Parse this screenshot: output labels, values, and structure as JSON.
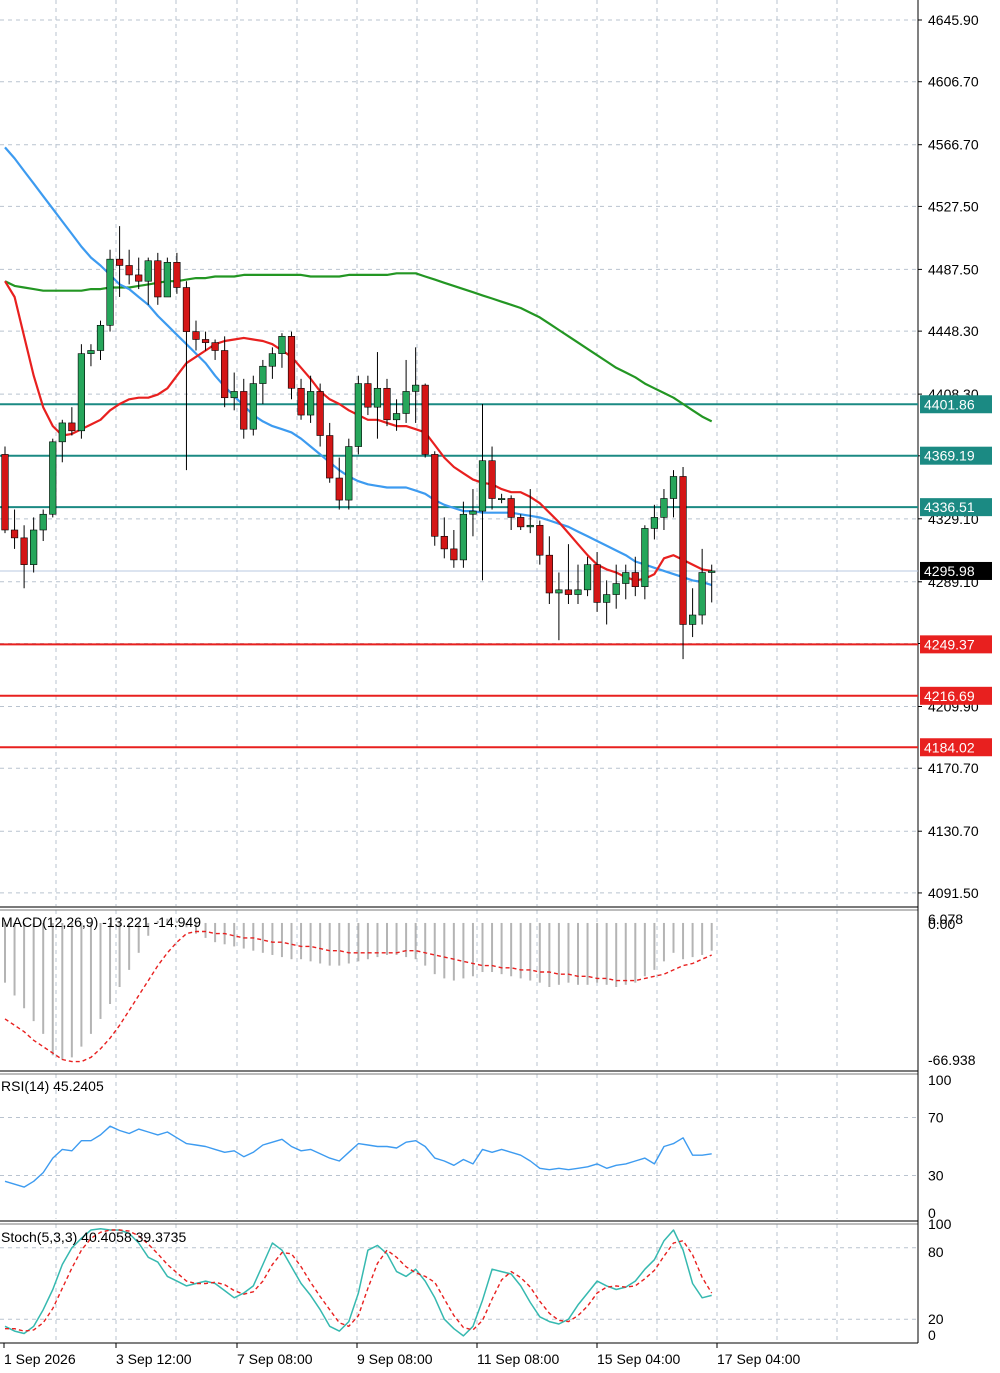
{
  "colors": {
    "bull": "#26a65b",
    "bear": "#d41616",
    "ma_fast": "#e8201f",
    "ma_mid": "#3d9bf0",
    "ma_slow": "#239623",
    "resistance": "#1b8a83",
    "support": "#e8201f",
    "price_tag": "#000000",
    "macd_hist": "#b4b4b4",
    "macd_signal": "#e8201f",
    "osc_line": "#3d9bf0",
    "stoch_main": "#36b9b0",
    "stoch_signal": "#e8201f",
    "grid": "#b9c3cf",
    "axis": "#000000"
  },
  "chart_data": [
    {
      "type": "candlestick",
      "price_ticks": [
        "4645.90",
        "4606.70",
        "4566.70",
        "4527.50",
        "4487.50",
        "4448.30",
        "4408.30",
        "4369.10",
        "4329.10",
        "4289.10",
        "4249.90",
        "4209.90",
        "4170.70",
        "4130.70",
        "4091.50"
      ],
      "tick_values": [
        4645.9,
        4606.7,
        4566.7,
        4527.5,
        4487.5,
        4448.3,
        4408.3,
        4369.1,
        4329.1,
        4289.1,
        4249.9,
        4209.9,
        4170.7,
        4130.7,
        4091.5
      ],
      "ylim": [
        4083.2,
        4658.6
      ],
      "time_labels": [
        "1 Sep 2026",
        "3 Sep 12:00",
        "7 Sep 08:00",
        "9 Sep 08:00",
        "11 Sep 08:00",
        "15 Sep 04:00",
        "17 Sep 04:00"
      ],
      "current_price": "4295.98",
      "current_value": 4295.98,
      "levels": [
        {
          "label": "4401.86",
          "value": 4401.86,
          "kind": "resistance"
        },
        {
          "label": "4369.19",
          "value": 4369.19,
          "kind": "resistance"
        },
        {
          "label": "4336.51",
          "value": 4336.51,
          "kind": "resistance"
        },
        {
          "label": "4249.37",
          "value": 4249.37,
          "kind": "support"
        },
        {
          "label": "4216.69",
          "value": 4216.69,
          "kind": "support"
        },
        {
          "label": "4184.02",
          "value": 4184.02,
          "kind": "support"
        }
      ],
      "candles": [
        [
          4370,
          4375,
          4320,
          4322
        ],
        [
          4322,
          4335,
          4310,
          4317
        ],
        [
          4317,
          4325,
          4285,
          4300
        ],
        [
          4300,
          4330,
          4295,
          4322
        ],
        [
          4322,
          4335,
          4315,
          4332
        ],
        [
          4332,
          4380,
          4330,
          4378
        ],
        [
          4378,
          4392,
          4365,
          4390
        ],
        [
          4390,
          4400,
          4382,
          4385
        ],
        [
          4385,
          4440,
          4380,
          4434
        ],
        [
          4434,
          4440,
          4426,
          4436
        ],
        [
          4436,
          4455,
          4430,
          4452
        ],
        [
          4452,
          4500,
          4448,
          4494
        ],
        [
          4494,
          4515,
          4470,
          4490
        ],
        [
          4490,
          4500,
          4478,
          4484
        ],
        [
          4484,
          4495,
          4475,
          4480
        ],
        [
          4480,
          4495,
          4465,
          4493
        ],
        [
          4493,
          4498,
          4465,
          4470
        ],
        [
          4470,
          4495,
          4470,
          4492
        ],
        [
          4492,
          4498,
          4472,
          4476
        ],
        [
          4476,
          4480,
          4360,
          4448
        ],
        [
          4448,
          4455,
          4436,
          4443
        ],
        [
          4443,
          4448,
          4436,
          4441
        ],
        [
          4441,
          4443,
          4430,
          4436
        ],
        [
          4436,
          4445,
          4400,
          4406
        ],
        [
          4406,
          4422,
          4398,
          4410
        ],
        [
          4410,
          4418,
          4380,
          4386
        ],
        [
          4386,
          4420,
          4382,
          4415
        ],
        [
          4415,
          4430,
          4402,
          4426
        ],
        [
          4426,
          4438,
          4418,
          4434
        ],
        [
          4434,
          4447,
          4425,
          4445
        ],
        [
          4445,
          4448,
          4405,
          4412
        ],
        [
          4412,
          4418,
          4392,
          4395
        ],
        [
          4395,
          4420,
          4390,
          4410
        ],
        [
          4410,
          4415,
          4375,
          4382
        ],
        [
          4382,
          4390,
          4352,
          4355
        ],
        [
          4355,
          4368,
          4335,
          4341
        ],
        [
          4341,
          4380,
          4335,
          4375
        ],
        [
          4375,
          4420,
          4370,
          4415
        ],
        [
          4415,
          4420,
          4395,
          4400
        ],
        [
          4400,
          4435,
          4380,
          4412
        ],
        [
          4412,
          4418,
          4388,
          4392
        ],
        [
          4392,
          4405,
          4385,
          4396
        ],
        [
          4396,
          4430,
          4390,
          4410
        ],
        [
          4410,
          4438,
          4390,
          4414
        ],
        [
          4414,
          4415,
          4368,
          4370
        ],
        [
          4370,
          4372,
          4312,
          4318
        ],
        [
          4318,
          4330,
          4304,
          4310
        ],
        [
          4310,
          4322,
          4298,
          4303
        ],
        [
          4303,
          4340,
          4298,
          4332
        ],
        [
          4332,
          4348,
          4318,
          4334
        ],
        [
          4334,
          4402,
          4290,
          4366
        ],
        [
          4366,
          4375,
          4335,
          4342
        ],
        [
          4342,
          4345,
          4339,
          4342
        ],
        [
          4342,
          4344,
          4322,
          4330
        ],
        [
          4330,
          4332,
          4322,
          4324
        ],
        [
          4324,
          4348,
          4320,
          4325
        ],
        [
          4325,
          4328,
          4300,
          4306
        ],
        [
          4306,
          4318,
          4275,
          4282
        ],
        [
          4282,
          4295,
          4252,
          4284
        ],
        [
          4284,
          4313,
          4275,
          4281
        ],
        [
          4281,
          4300,
          4275,
          4284
        ],
        [
          4284,
          4305,
          4280,
          4300
        ],
        [
          4300,
          4308,
          4270,
          4276
        ],
        [
          4276,
          4290,
          4262,
          4281
        ],
        [
          4281,
          4300,
          4272,
          4288
        ],
        [
          4288,
          4300,
          4278,
          4295
        ],
        [
          4295,
          4305,
          4280,
          4286
        ],
        [
          4286,
          4325,
          4278,
          4323
        ],
        [
          4323,
          4338,
          4316,
          4330
        ],
        [
          4330,
          4348,
          4322,
          4342
        ],
        [
          4342,
          4360,
          4330,
          4356
        ],
        [
          4356,
          4362,
          4240,
          4262
        ],
        [
          4262,
          4285,
          4254,
          4268
        ],
        [
          4268,
          4310,
          4262,
          4295
        ],
        [
          4295,
          4300,
          4276,
          4296
        ]
      ],
      "ma_fast": [
        4480,
        4470,
        4445,
        4420,
        4400,
        4388,
        4382,
        4383,
        4386,
        4389,
        4392,
        4398,
        4402,
        4405,
        4406,
        4406,
        4408,
        4412,
        4420,
        4428,
        4432,
        4436,
        4440,
        4442,
        4443,
        4444,
        4443,
        4442,
        4440,
        4436,
        4432,
        4425,
        4418,
        4410,
        4405,
        4402,
        4398,
        4395,
        4392,
        4392,
        4390,
        4388,
        4388,
        4386,
        4384,
        4376,
        4368,
        4362,
        4358,
        4354,
        4352,
        4351,
        4348,
        4346,
        4346,
        4343,
        4339,
        4333,
        4327,
        4320,
        4313,
        4306,
        4300,
        4297,
        4295,
        4292,
        4290,
        4291,
        4294,
        4304,
        4306,
        4303,
        4300,
        4297,
        4296
      ],
      "ma_mid": [
        4565,
        4558,
        4550,
        4542,
        4534,
        4526,
        4518,
        4510,
        4502,
        4495,
        4490,
        4484,
        4478,
        4475,
        4470,
        4465,
        4458,
        4452,
        4446,
        4440,
        4434,
        4428,
        4420,
        4413,
        4407,
        4401,
        4395,
        4391,
        4388,
        4386,
        4384,
        4380,
        4375,
        4370,
        4365,
        4360,
        4356,
        4353,
        4351,
        4350,
        4349,
        4349,
        4349,
        4347,
        4345,
        4341,
        4338,
        4336,
        4334,
        4334,
        4333,
        4333,
        4333,
        4333,
        4332,
        4331,
        4330,
        4328,
        4326,
        4324,
        4321,
        4318,
        4315,
        4312,
        4309,
        4306,
        4302,
        4300,
        4298,
        4296,
        4294,
        4292,
        4290,
        4289,
        4287
      ],
      "ma_slow": [
        4480,
        4477,
        4476,
        4475,
        4474,
        4474,
        4474,
        4474,
        4474,
        4475,
        4475,
        4476,
        4476,
        4476,
        4477,
        4478,
        4479,
        4480,
        4480,
        4481,
        4482,
        4482,
        4483,
        4483,
        4483,
        4484,
        4484,
        4484,
        4484,
        4484,
        4484,
        4484,
        4483,
        4483,
        4483,
        4483,
        4484,
        4484,
        4484,
        4484,
        4484,
        4485,
        4485,
        4485,
        4483,
        4481,
        4479,
        4477,
        4475,
        4473,
        4471,
        4469,
        4467,
        4465,
        4463,
        4460,
        4457,
        4453,
        4449,
        4445,
        4441,
        4437,
        4433,
        4429,
        4425,
        4422,
        4419,
        4415,
        4412,
        4409,
        4406,
        4402,
        4398,
        4394,
        4391
      ]
    },
    {
      "type": "bar",
      "name": "MACD(12,26,9)",
      "title_values": "MACD(12,26,9) -13.221 -14.949",
      "top_label": "6.078",
      "zero_label": "0.00",
      "bottom_label": "-66.938",
      "ylim": [
        -68,
        6.078
      ],
      "histogram": [
        -28,
        -34,
        -40,
        -46,
        -52,
        -62,
        -64,
        -63,
        -58,
        -52,
        -45,
        -38,
        -30,
        -22,
        -14,
        -6,
        1,
        2,
        1,
        -2,
        -5,
        -7,
        -9,
        -10,
        -11,
        -12,
        -13,
        -14,
        -15,
        -16,
        -17,
        -17,
        -18,
        -19,
        -20,
        -20,
        -19,
        -18,
        -17,
        -16,
        -15,
        -15,
        -16,
        -17,
        -20,
        -24,
        -26,
        -27,
        -26,
        -25,
        -23,
        -23,
        -24,
        -25,
        -26,
        -27,
        -28,
        -30,
        -29,
        -28,
        -29,
        -29,
        -28,
        -29,
        -30,
        -29,
        -28,
        -25,
        -22,
        -18,
        -14,
        -17,
        -16,
        -15,
        -13
      ],
      "signal": [
        -45,
        -48,
        -51,
        -55,
        -58,
        -61,
        -64,
        -65,
        -65,
        -63,
        -59,
        -54,
        -48,
        -41,
        -34,
        -27,
        -20,
        -14,
        -9,
        -5,
        -4,
        -4,
        -5,
        -5,
        -6,
        -7,
        -7,
        -8,
        -9,
        -9,
        -10,
        -11,
        -11,
        -12,
        -13,
        -13,
        -14,
        -14,
        -14,
        -14,
        -14,
        -14,
        -13,
        -13,
        -14,
        -15,
        -16,
        -17,
        -18,
        -19,
        -20,
        -20,
        -21,
        -21,
        -22,
        -22,
        -23,
        -23,
        -24,
        -24,
        -25,
        -25,
        -26,
        -26,
        -27,
        -27,
        -27,
        -26,
        -25,
        -24,
        -22,
        -20,
        -19,
        -17,
        -15
      ]
    },
    {
      "type": "line",
      "name": "RSI(14)",
      "title_values": "RSI(14) 45.2405",
      "yticks": [
        "100",
        "70",
        "30",
        "0"
      ],
      "ytick_values": [
        100,
        70,
        30,
        0
      ],
      "ylim": [
        0,
        100
      ],
      "values": [
        26,
        24,
        22,
        26,
        32,
        42,
        48,
        47,
        54,
        54,
        58,
        64,
        61,
        59,
        62,
        60,
        58,
        60,
        56,
        52,
        51,
        50,
        48,
        46,
        47,
        43,
        46,
        51,
        53,
        55,
        50,
        47,
        48,
        45,
        42,
        40,
        46,
        52,
        51,
        50,
        50,
        49,
        53,
        54,
        50,
        42,
        40,
        37,
        41,
        38,
        48,
        46,
        48,
        46,
        44,
        40,
        35,
        34,
        35,
        34,
        35,
        36,
        38,
        35,
        37,
        38,
        40,
        42,
        38,
        50,
        52,
        56,
        44,
        44,
        45
      ]
    },
    {
      "type": "line",
      "name": "Stoch(5,3,3)",
      "title_values": "Stoch(5,3,3) 40.4058 39.3735",
      "yticks": [
        "100",
        "80",
        "20",
        "0"
      ],
      "ytick_values": [
        100,
        80,
        20,
        0
      ],
      "ylim": [
        0,
        100
      ],
      "main": [
        14,
        10,
        8,
        14,
        28,
        45,
        66,
        80,
        88,
        95,
        96,
        95,
        95,
        92,
        84,
        72,
        68,
        56,
        52,
        48,
        50,
        52,
        50,
        44,
        38,
        42,
        48,
        66,
        84,
        78,
        64,
        50,
        40,
        28,
        14,
        10,
        18,
        42,
        78,
        82,
        75,
        60,
        56,
        62,
        52,
        38,
        20,
        12,
        6,
        14,
        36,
        62,
        60,
        58,
        48,
        34,
        22,
        18,
        16,
        20,
        32,
        42,
        52,
        48,
        45,
        47,
        52,
        62,
        70,
        86,
        95,
        78,
        50,
        38,
        40
      ],
      "signal": [
        12,
        12,
        10,
        11,
        17,
        29,
        46,
        63,
        78,
        88,
        93,
        95,
        95,
        94,
        90,
        83,
        75,
        66,
        59,
        52,
        50,
        50,
        51,
        49,
        44,
        41,
        43,
        52,
        66,
        76,
        75,
        64,
        51,
        39,
        28,
        17,
        14,
        23,
        46,
        67,
        78,
        72,
        64,
        59,
        56,
        51,
        37,
        23,
        13,
        11,
        19,
        37,
        53,
        60,
        55,
        47,
        35,
        25,
        19,
        18,
        23,
        31,
        42,
        47,
        48,
        47,
        48,
        54,
        61,
        73,
        84,
        86,
        74,
        55,
        42
      ]
    }
  ]
}
